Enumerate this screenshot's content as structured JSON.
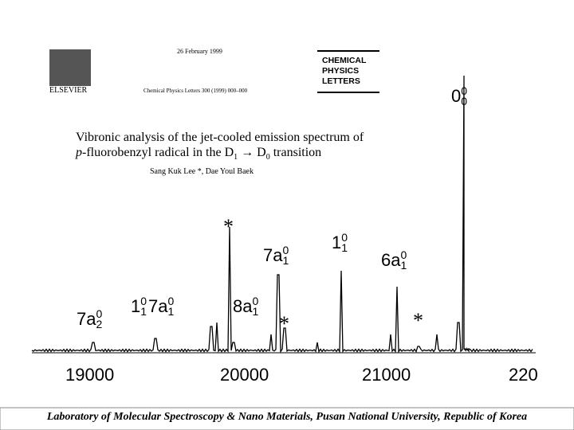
{
  "header": {
    "logo": "ELSEVIER",
    "date": "26 February 1999",
    "citation": "Chemical Physics Letters 300 (1999) 000–000",
    "journal": [
      "CHEMICAL",
      "PHYSICS",
      "LETTERS"
    ]
  },
  "article": {
    "title_line1": "Vibronic analysis of the jet-cooled emission spectrum of",
    "title_line2": [
      {
        "text": "p",
        "italic": true
      },
      {
        "text": "-fluorobenzyl radical in the D"
      },
      {
        "text": "1",
        "sub": true
      },
      {
        "text": " → D"
      },
      {
        "text": "0",
        "sub": true
      },
      {
        "text": " transition"
      }
    ],
    "authors": "Sang Kuk Lee *, Dae Youl Baek"
  },
  "figure": {
    "x_tick_labels": [
      "19000",
      "20000",
      "21000",
      "220"
    ],
    "peak_labels": [
      {
        "parts": [
          {
            "base": "7a",
            "sup": "0",
            "sub": "2"
          }
        ]
      },
      {
        "parts": [
          {
            "base": "1",
            "sup": "0",
            "sub": "1"
          },
          {
            "base": "7a",
            "sup": "0",
            "sub": "1"
          }
        ]
      },
      {
        "parts": [
          {
            "base": "8a",
            "sup": "0",
            "sub": "1"
          }
        ]
      },
      {
        "parts": [
          {
            "base": "7a",
            "sup": "0",
            "sub": "1"
          }
        ]
      },
      {
        "parts": [
          {
            "base": "1",
            "sup": "0",
            "sub": "1"
          }
        ]
      },
      {
        "parts": [
          {
            "base": "6a",
            "sup": "0",
            "sub": "1"
          }
        ]
      },
      {
        "parts": [
          {
            "base": "0",
            "sup": "0",
            "sub": "0"
          }
        ]
      }
    ],
    "markers": [
      "*",
      "*",
      "*"
    ]
  },
  "footer": "Laboratory of Molecular Spectroscopy & Nano Materials, Pusan National University, Republic of Korea"
}
